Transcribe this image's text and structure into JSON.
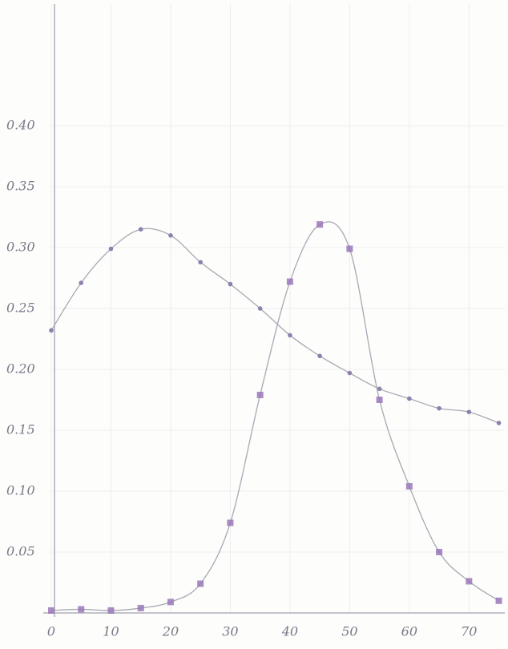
{
  "chart_data": {
    "type": "line",
    "x": [
      0,
      5,
      10,
      15,
      20,
      25,
      30,
      35,
      40,
      45,
      50,
      55,
      60,
      65,
      70,
      75
    ],
    "series": [
      {
        "color": "#8e7fb0",
        "marker": "circle",
        "values": [
          0.232,
          0.271,
          0.299,
          0.315,
          0.31,
          0.288,
          0.27,
          0.25,
          0.228,
          0.211,
          0.197,
          0.184,
          0.176,
          0.168,
          0.165,
          0.156
        ]
      },
      {
        "color": "#9a78b8",
        "marker": "square",
        "values": [
          0.002,
          0.003,
          0.002,
          0.004,
          0.009,
          0.024,
          0.074,
          0.179,
          0.272,
          0.319,
          0.299,
          0.175,
          0.104,
          0.05,
          0.026,
          0.01
        ]
      }
    ],
    "xlim": [
      0,
      76
    ],
    "ylim": [
      0,
      0.5
    ],
    "xticks": [
      0,
      10,
      20,
      30,
      40,
      50,
      60,
      70
    ],
    "yticks": [
      {
        "value": 0.4,
        "label": "0.40"
      },
      0.35,
      {
        "value": 0.3,
        "label": "0.30"
      },
      0.25,
      {
        "value": 0.2,
        "label": "0.20"
      },
      0.15,
      {
        "value": 0.1,
        "label": "0.10"
      },
      0.05
    ],
    "grid": true
  }
}
